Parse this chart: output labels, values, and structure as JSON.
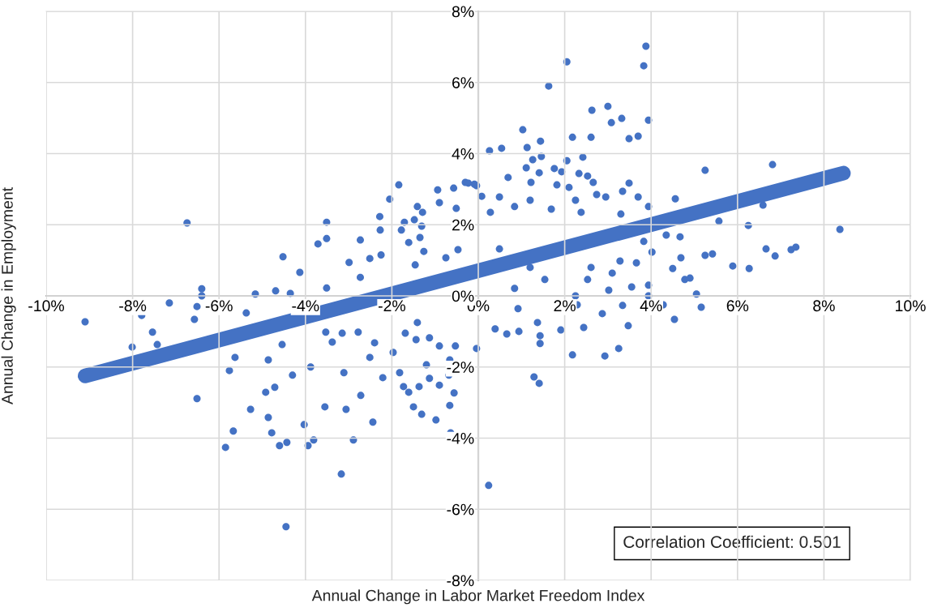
{
  "chart_data": {
    "type": "scatter",
    "xlabel": "Annual Change in Labor Market Freedom Index",
    "ylabel": "Annual Change in Employment",
    "annotations": [
      "Correlation Coefficient: 0.501"
    ],
    "xlim": [
      -10,
      10
    ],
    "xticks": [
      {
        "value": -10,
        "label": "-10%"
      },
      {
        "value": -8,
        "label": "-8%"
      },
      {
        "value": -6,
        "label": "-6%"
      },
      {
        "value": -4,
        "label": "-4%"
      },
      {
        "value": -2,
        "label": "-2%"
      },
      {
        "value": 0,
        "label": "0%"
      },
      {
        "value": 2,
        "label": "2%"
      },
      {
        "value": 4,
        "label": "4%"
      },
      {
        "value": 6,
        "label": "6%"
      },
      {
        "value": 8,
        "label": "8%"
      },
      {
        "value": 10,
        "label": "10%"
      }
    ],
    "ylim": [
      -8,
      8
    ],
    "yticks": [
      {
        "value": -8,
        "label": "-8%"
      },
      {
        "value": -6,
        "label": "-6%"
      },
      {
        "value": -4,
        "label": "-4%"
      },
      {
        "value": -2,
        "label": "-2%"
      },
      {
        "value": 0,
        "label": "0%"
      },
      {
        "value": 2,
        "label": "2%"
      },
      {
        "value": 4,
        "label": "4%"
      },
      {
        "value": 6,
        "label": "6%"
      },
      {
        "value": 8,
        "label": "8%"
      }
    ],
    "grid": true,
    "legend": false,
    "marker": "circle",
    "series": [
      {
        "type": "scatter",
        "color": "#4472c4",
        "x": [
          -6.74,
          -3.51,
          -3.51,
          -3.71,
          -4.52,
          -4.13,
          -3.51,
          -2.73,
          -2.51,
          -2.99,
          -2.73,
          -2.28,
          -2.27,
          -2.25,
          -2.05,
          -1.84,
          -1.71,
          -1.78,
          -1.48,
          -1.41,
          -1.29,
          -1.61,
          -1.35,
          -1.31,
          -0.9,
          -0.94,
          -0.57,
          -0.23,
          -0.51,
          -1.26,
          -0.75,
          -0.47,
          -1.46,
          -0.04,
          0.08,
          -5.16,
          -4.69,
          -4.35,
          -6.4,
          -6.4,
          -7.15,
          3.88,
          2.05,
          3.83,
          1.63,
          3.0,
          2.63,
          3.32,
          3.08,
          3.94,
          1.03,
          2.18,
          2.61,
          3.49,
          3.7,
          1.44,
          0.26,
          0.54,
          1.13,
          1.46,
          1.26,
          2.05,
          2.42,
          5.25,
          6.81,
          1.11,
          1.76,
          1.93,
          1.41,
          2.33,
          2.53,
          0.69,
          -0.3,
          -0.09,
          1.22,
          2.66,
          3.49,
          1.82,
          2.1,
          3.34,
          3.7,
          4.56,
          3.94,
          3.3,
          6.59,
          5.57,
          6.25,
          8.37,
          4.67,
          4.35,
          3.83,
          5.25,
          5.42,
          6.66,
          6.87,
          7.24,
          7.35,
          5.89,
          6.27,
          4.78,
          4.9,
          4.5,
          4.69,
          5.05,
          4.02,
          3.28,
          3.66,
          3.1,
          3.94,
          3.55,
          3.02,
          2.25,
          0.28,
          0.84,
          0.49,
          1.2,
          1.69,
          2.25,
          2.38,
          2.74,
          2.95,
          0.49,
          1.2,
          1.54,
          2.61,
          2.53,
          0.84,
          0.24,
          1.29,
          1.41,
          2.18,
          2.93,
          3.25,
          -0.04,
          3.47,
          2.44,
          1.91,
          1.43,
          1.43,
          0.94,
          0.66,
          0.39,
          4.54,
          5.16,
          4.28,
          3.94,
          3.34,
          2.87,
          2.29,
          1.37,
          0.92,
          -9.1,
          -7.79,
          -7.54,
          -8.01,
          -7.43,
          -6.57,
          -6.51,
          -6.51,
          -5.76,
          -5.63,
          -5.67,
          -5.85,
          -5.37,
          -4.86,
          -4.92,
          -4.71,
          -5.27,
          -4.86,
          -4.78,
          -4.6,
          -4.43,
          -4.45,
          -4.54,
          -4.3,
          -3.88,
          -4.03,
          -3.94,
          -3.81,
          -3.17,
          -3.55,
          -3.06,
          -2.89,
          -2.72,
          -2.44,
          -3.11,
          -3.38,
          -3.53,
          -3.15,
          -2.78,
          -2.4,
          -2.51,
          -2.21,
          -1.97,
          -1.82,
          -1.73,
          -1.61,
          -1.5,
          -1.31,
          -0.98,
          -1.37,
          -1.13,
          -0.9,
          -0.56,
          -0.66,
          -0.68,
          -1.2,
          -0.66,
          -0.9,
          -1.13,
          -1.44,
          -1.69,
          -0.53,
          -0.64,
          -1.41
        ],
        "values": [
          2.05,
          2.07,
          1.61,
          1.46,
          1.1,
          0.66,
          0.22,
          1.57,
          1.05,
          0.94,
          0.52,
          2.23,
          1.85,
          1.15,
          2.72,
          3.12,
          2.07,
          1.85,
          2.14,
          2.51,
          2.35,
          1.5,
          1.64,
          1.96,
          2.62,
          2.98,
          3.03,
          3.17,
          2.46,
          1.25,
          1.07,
          1.3,
          0.87,
          3.1,
          2.8,
          0.05,
          0.14,
          0.07,
          0.2,
          0.0,
          -0.2,
          7.02,
          6.58,
          6.47,
          5.9,
          5.33,
          5.22,
          4.99,
          4.87,
          4.94,
          4.67,
          4.46,
          4.46,
          4.42,
          4.49,
          4.35,
          4.08,
          4.15,
          4.17,
          3.92,
          3.83,
          3.8,
          3.9,
          3.53,
          3.69,
          3.6,
          3.58,
          3.49,
          3.46,
          3.44,
          3.37,
          3.33,
          3.19,
          3.14,
          3.19,
          3.19,
          3.17,
          3.12,
          3.05,
          2.94,
          2.78,
          2.73,
          2.51,
          2.3,
          2.55,
          2.1,
          1.98,
          1.87,
          1.66,
          1.71,
          1.53,
          1.14,
          1.18,
          1.32,
          1.12,
          1.3,
          1.37,
          0.84,
          0.77,
          0.46,
          0.5,
          0.77,
          1.07,
          0.05,
          1.23,
          0.98,
          0.93,
          0.64,
          0.3,
          0.25,
          0.16,
          0.0,
          2.35,
          2.51,
          2.78,
          2.69,
          2.44,
          2.69,
          2.35,
          2.85,
          2.78,
          1.32,
          0.8,
          0.46,
          0.8,
          0.46,
          0.21,
          -5.33,
          -2.28,
          -2.46,
          -1.66,
          -1.69,
          -1.48,
          -1.48,
          -0.84,
          -0.89,
          -0.96,
          -1.34,
          -1.12,
          -1.0,
          -1.07,
          -0.93,
          -0.66,
          -0.32,
          -0.25,
          0.0,
          -0.27,
          -0.5,
          -0.25,
          -0.75,
          -0.36,
          -0.73,
          -0.55,
          -1.02,
          -1.44,
          -1.37,
          -0.66,
          -0.3,
          -2.89,
          -2.1,
          -1.73,
          -3.8,
          -4.26,
          -0.48,
          -1.8,
          -2.71,
          -2.57,
          -3.19,
          -3.42,
          -3.85,
          -4.21,
          -4.12,
          -6.49,
          -1.37,
          -2.23,
          -2.0,
          -3.62,
          -4.21,
          -4.05,
          -5.01,
          -3.12,
          -3.19,
          -4.05,
          -2.8,
          -3.55,
          -2.16,
          -1.3,
          -1.02,
          -1.05,
          -1.02,
          -1.32,
          -1.73,
          -2.3,
          -1.59,
          -2.16,
          -2.55,
          -2.71,
          -3.12,
          -3.33,
          -3.49,
          -2.55,
          -2.32,
          -2.51,
          -2.73,
          -3.08,
          -2.23,
          -1.94,
          -1.8,
          -1.41,
          -1.18,
          -1.23,
          -1.05,
          -1.41,
          -3.85,
          -0.75
        ]
      },
      {
        "type": "line",
        "color": "#4472c4",
        "line_style": "solid",
        "marker": "none",
        "x": [
          -9.1,
          8.45
        ],
        "values": [
          -2.25,
          3.45
        ]
      }
    ]
  }
}
